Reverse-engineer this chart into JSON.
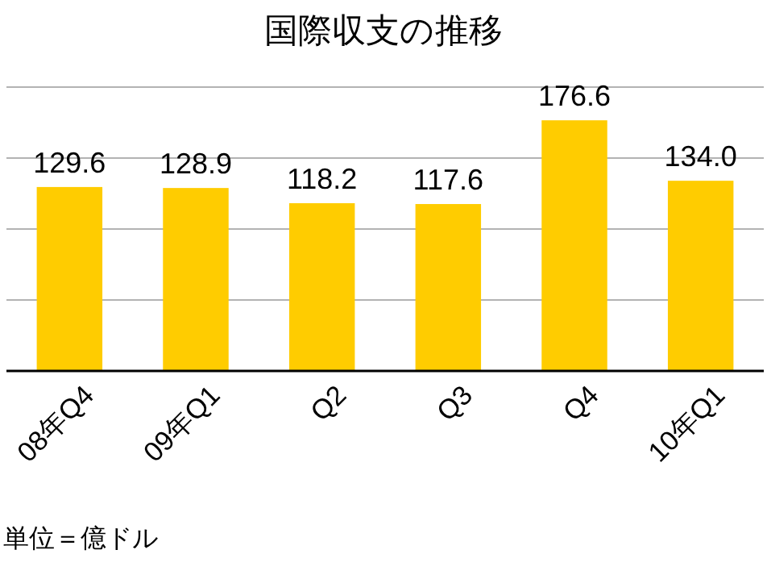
{
  "chart_data": {
    "type": "bar",
    "title": "国際収支の推移",
    "categories": [
      "08年Q4",
      "09年Q1",
      "Q2",
      "Q3",
      "Q4",
      "10年Q1"
    ],
    "values": [
      129.6,
      128.9,
      118.2,
      117.6,
      176.6,
      134.0
    ],
    "color": "#ffcc00",
    "ylim": [
      0,
      200
    ],
    "yticks": [
      {
        "value": 0,
        "label": null
      },
      {
        "value": 50,
        "label": null
      },
      {
        "value": 100,
        "label": null
      },
      {
        "value": 150,
        "label": null
      },
      {
        "value": 200,
        "label": null
      }
    ],
    "value_labels": [
      "129.6",
      "128.9",
      "118.2",
      "117.6",
      "176.6",
      "134.0"
    ],
    "grid": "y",
    "tick_labels": "x",
    "annotations": [
      "単位＝億ドル"
    ]
  }
}
